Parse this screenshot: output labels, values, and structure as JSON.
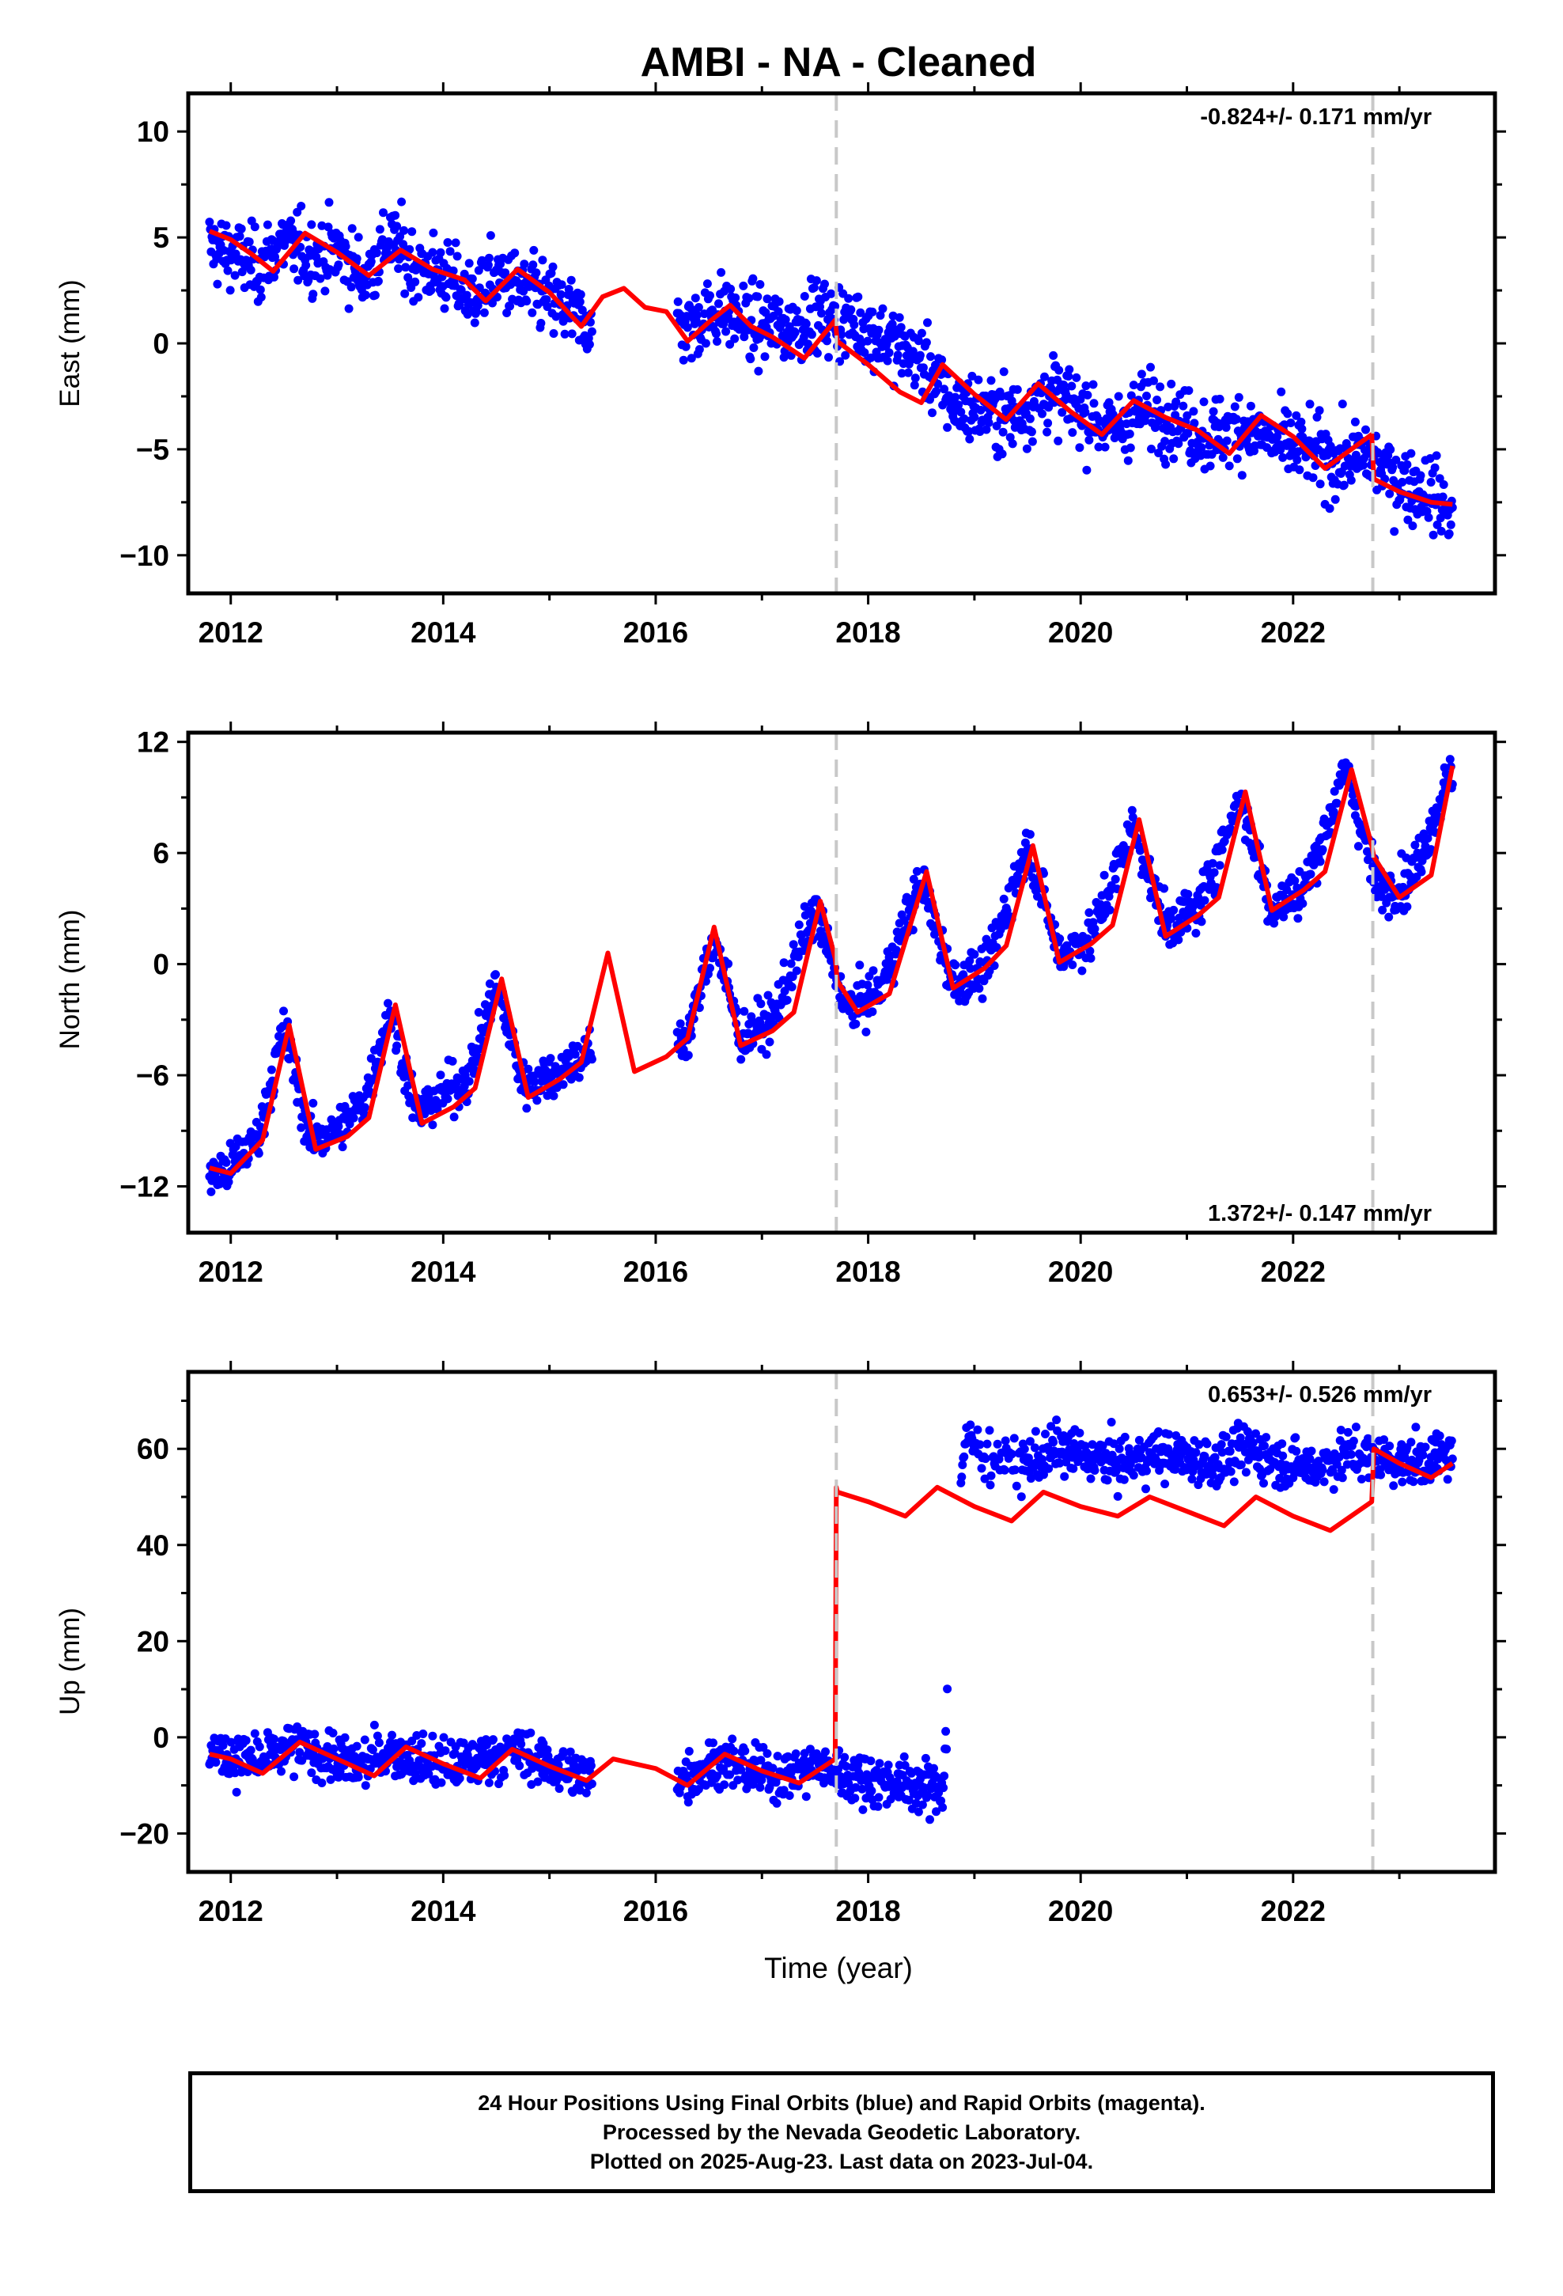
{
  "chart_data": [
    {
      "type": "scatter",
      "title": "AMBI  - NA - Cleaned",
      "ylabel": "East (mm)",
      "xlabel": "",
      "annotation": "-0.824+/- 0.171 mm/yr",
      "annotation_position": "top-right",
      "xlim": [
        2011.6,
        2023.9
      ],
      "ylim": [
        -11.8,
        11.8
      ],
      "x_ticks": [
        2012,
        2014,
        2016,
        2018,
        2020,
        2022
      ],
      "y_ticks": [
        -10,
        -5,
        0,
        5,
        10
      ],
      "grid": false,
      "vertical_lines": [
        2017.7,
        2022.75
      ],
      "gap": [
        2015.4,
        2016.2
      ],
      "data_range": [
        2011.8,
        2023.5
      ],
      "series": [
        {
          "kind": "points",
          "color": "#0000ff",
          "x": [
            2011.8,
            2012.0,
            2012.25,
            2012.5,
            2012.75,
            2013.0,
            2013.25,
            2013.5,
            2013.75,
            2014.0,
            2014.25,
            2014.5,
            2014.75,
            2015.0,
            2015.3,
            2016.3,
            2016.6,
            2016.9,
            2017.2,
            2017.5,
            2017.9,
            2018.2,
            2018.5,
            2018.8,
            2019.1,
            2019.4,
            2019.7,
            2020.0,
            2020.3,
            2020.6,
            2020.9,
            2021.2,
            2021.5,
            2021.8,
            2022.1,
            2022.4,
            2022.7,
            2023.0,
            2023.3,
            2023.5
          ],
          "y": [
            4.6,
            4.2,
            3.6,
            4.8,
            4.1,
            4.4,
            3.1,
            4.9,
            3.6,
            3.3,
            2.2,
            3.1,
            2.5,
            2.1,
            1.1,
            0.8,
            1.6,
            0.9,
            0.7,
            1.3,
            0.9,
            0.1,
            -0.8,
            -2.9,
            -3.2,
            -3.4,
            -2.3,
            -3.1,
            -4.1,
            -3.0,
            -3.6,
            -4.4,
            -3.9,
            -4.6,
            -5.0,
            -5.6,
            -5.3,
            -6.5,
            -7.0,
            -8.2
          ]
        },
        {
          "kind": "model",
          "color": "#ff0000",
          "x": [
            2011.8,
            2012.0,
            2012.2,
            2012.4,
            2012.7,
            2013.0,
            2013.3,
            2013.6,
            2013.9,
            2014.2,
            2014.4,
            2014.7,
            2015.0,
            2015.3,
            2015.5,
            2015.7,
            2015.9,
            2016.1,
            2016.3,
            2016.5,
            2016.7,
            2016.9,
            2017.1,
            2017.4,
            2017.69,
            2017.71,
            2018.0,
            2018.3,
            2018.5,
            2018.7,
            2019.0,
            2019.3,
            2019.6,
            2019.9,
            2020.2,
            2020.5,
            2020.8,
            2021.1,
            2021.4,
            2021.7,
            2022.0,
            2022.3,
            2022.74,
            2022.76,
            2023.0,
            2023.3,
            2023.5
          ],
          "y": [
            5.3,
            4.9,
            4.2,
            3.4,
            5.2,
            4.3,
            3.2,
            4.4,
            3.5,
            3.0,
            2.0,
            3.5,
            2.4,
            0.8,
            2.2,
            2.6,
            1.7,
            1.5,
            0.1,
            1.0,
            1.8,
            0.8,
            0.3,
            -0.7,
            1.1,
            0.1,
            -1.0,
            -2.3,
            -2.8,
            -1.0,
            -2.4,
            -3.6,
            -1.9,
            -3.2,
            -4.3,
            -2.7,
            -3.5,
            -4.1,
            -5.2,
            -3.4,
            -4.4,
            -5.9,
            -4.3,
            -6.4,
            -7.0,
            -7.5,
            -7.6
          ]
        }
      ]
    },
    {
      "type": "scatter",
      "title": "",
      "ylabel": "North (mm)",
      "xlabel": "",
      "annotation": "1.372+/- 0.147 mm/yr",
      "annotation_position": "bottom-right",
      "xlim": [
        2011.6,
        2023.9
      ],
      "ylim": [
        -14.5,
        12.5
      ],
      "x_ticks": [
        2012,
        2014,
        2016,
        2018,
        2020,
        2022
      ],
      "y_ticks": [
        -12,
        -6,
        0,
        6,
        12
      ],
      "grid": false,
      "vertical_lines": [
        2017.7,
        2022.75
      ],
      "gap": [
        2015.4,
        2016.2
      ],
      "data_range": [
        2011.8,
        2023.5
      ],
      "series": [
        {
          "kind": "points",
          "color": "#0000ff",
          "x": [
            2011.8,
            2012.0,
            2012.25,
            2012.5,
            2012.75,
            2013.0,
            2013.25,
            2013.5,
            2013.75,
            2014.0,
            2014.25,
            2014.5,
            2014.75,
            2015.0,
            2015.3,
            2016.3,
            2016.55,
            2016.8,
            2017.1,
            2017.5,
            2017.8,
            2018.1,
            2018.5,
            2018.8,
            2019.1,
            2019.5,
            2019.8,
            2020.1,
            2020.5,
            2020.8,
            2021.1,
            2021.5,
            2021.8,
            2022.1,
            2022.5,
            2022.8,
            2023.1,
            2023.5
          ],
          "y": [
            -11.5,
            -11.0,
            -9.5,
            -3.5,
            -9.5,
            -9.0,
            -7.5,
            -2.5,
            -8.0,
            -7.0,
            -6.0,
            -1.0,
            -6.5,
            -6.0,
            -5.0,
            -4.0,
            1.5,
            -4.0,
            -3.0,
            3.0,
            -2.5,
            -1.5,
            4.5,
            -1.0,
            -0.5,
            6.5,
            0.5,
            1.5,
            7.5,
            2.0,
            3.0,
            9.0,
            3.0,
            4.0,
            10.5,
            4.0,
            4.5,
            10.5
          ]
        },
        {
          "kind": "model",
          "color": "#ff0000",
          "x": [
            2011.8,
            2012.0,
            2012.3,
            2012.55,
            2012.8,
            2013.1,
            2013.3,
            2013.55,
            2013.8,
            2014.1,
            2014.3,
            2014.55,
            2014.8,
            2015.1,
            2015.3,
            2015.55,
            2015.8,
            2016.1,
            2016.3,
            2016.55,
            2016.8,
            2017.1,
            2017.3,
            2017.55,
            2017.69,
            2017.71,
            2017.9,
            2018.2,
            2018.55,
            2018.8,
            2019.1,
            2019.3,
            2019.55,
            2019.8,
            2020.1,
            2020.3,
            2020.55,
            2020.8,
            2021.1,
            2021.3,
            2021.55,
            2021.8,
            2022.1,
            2022.3,
            2022.55,
            2022.74,
            2022.76,
            2023.0,
            2023.3,
            2023.5
          ],
          "y": [
            -11.0,
            -11.3,
            -9.5,
            -3.3,
            -10.0,
            -9.3,
            -8.3,
            -2.2,
            -8.6,
            -7.7,
            -6.7,
            -0.8,
            -7.2,
            -6.2,
            -5.3,
            0.6,
            -5.8,
            -5.0,
            -4.0,
            2.0,
            -4.4,
            -3.6,
            -2.6,
            3.4,
            0.3,
            -0.9,
            -2.6,
            -1.6,
            5.0,
            -1.3,
            -0.2,
            1.0,
            6.4,
            0.1,
            1.1,
            2.1,
            7.8,
            1.5,
            2.6,
            3.6,
            9.3,
            2.9,
            4.0,
            5.0,
            10.5,
            6.4,
            5.8,
            3.6,
            4.8,
            10.7
          ]
        }
      ]
    },
    {
      "type": "scatter",
      "title": "",
      "ylabel": "Up (mm)",
      "xlabel": "Time (year)",
      "annotation": "0.653+/- 0.526 mm/yr",
      "annotation_position": "top-right",
      "xlim": [
        2011.6,
        2023.9
      ],
      "ylim": [
        -28,
        76
      ],
      "x_ticks": [
        2012,
        2014,
        2016,
        2018,
        2020,
        2022
      ],
      "y_ticks": [
        -20,
        0,
        20,
        40,
        60
      ],
      "grid": false,
      "vertical_lines": [
        2017.7,
        2022.75
      ],
      "gaps": [
        [
          2015.4,
          2016.2
        ],
        [
          2018.75,
          2018.85
        ]
      ],
      "data_range": [
        2011.8,
        2023.5
      ],
      "series": [
        {
          "kind": "points",
          "color": "#0000ff",
          "x": [
            2011.8,
            2012.0,
            2012.3,
            2012.6,
            2012.9,
            2013.2,
            2013.5,
            2013.8,
            2014.1,
            2014.4,
            2014.7,
            2015.0,
            2015.3,
            2016.3,
            2016.6,
            2016.9,
            2017.2,
            2017.5,
            2017.8,
            2018.1,
            2018.4,
            2018.7,
            2018.9,
            2019.2,
            2019.5,
            2019.8,
            2020.1,
            2020.4,
            2020.7,
            2021.0,
            2021.3,
            2021.6,
            2021.9,
            2022.2,
            2022.5,
            2022.8,
            2023.1,
            2023.5
          ],
          "y": [
            -3,
            -4,
            -5,
            -2,
            -4,
            -6,
            -3,
            -5,
            -6,
            -4,
            -3,
            -6,
            -8,
            -8,
            -5,
            -7,
            -8,
            -6,
            -8,
            -9,
            -10,
            -11,
            62,
            58,
            57,
            60,
            58,
            57,
            59,
            58,
            57,
            60,
            57,
            56,
            59,
            58,
            57,
            59
          ]
        },
        {
          "kind": "model",
          "color": "#ff0000",
          "x": [
            2011.8,
            2012.0,
            2012.3,
            2012.65,
            2013.0,
            2013.35,
            2013.65,
            2014.0,
            2014.35,
            2014.65,
            2015.0,
            2015.35,
            2015.6,
            2016.0,
            2016.3,
            2016.65,
            2017.0,
            2017.35,
            2017.69,
            2017.7,
            2017.71,
            2018.0,
            2018.35,
            2018.65,
            2019.0,
            2019.35,
            2019.65,
            2020.0,
            2020.35,
            2020.65,
            2021.0,
            2021.35,
            2021.65,
            2022.0,
            2022.35,
            2022.74,
            2022.76,
            2023.0,
            2023.3,
            2023.5
          ],
          "y": [
            -3.5,
            -4.5,
            -7.5,
            -1.0,
            -4.5,
            -8.0,
            -2.0,
            -5.5,
            -8.5,
            -2.5,
            -6.0,
            -9.0,
            -4.5,
            -6.5,
            -10.0,
            -3.5,
            -7.0,
            -9.5,
            -4.5,
            52,
            51,
            49,
            46,
            52,
            48,
            45,
            51,
            48,
            46,
            50,
            47,
            44,
            50,
            46,
            43,
            49,
            60,
            57,
            54,
            57
          ]
        }
      ]
    }
  ],
  "caption_lines": [
    "24 Hour Positions Using Final Orbits (blue) and Rapid Orbits (magenta).",
    "Processed by the Nevada Geodetic Laboratory.",
    "Plotted on 2025-Aug-23. Last data on 2023-Jul-04."
  ]
}
